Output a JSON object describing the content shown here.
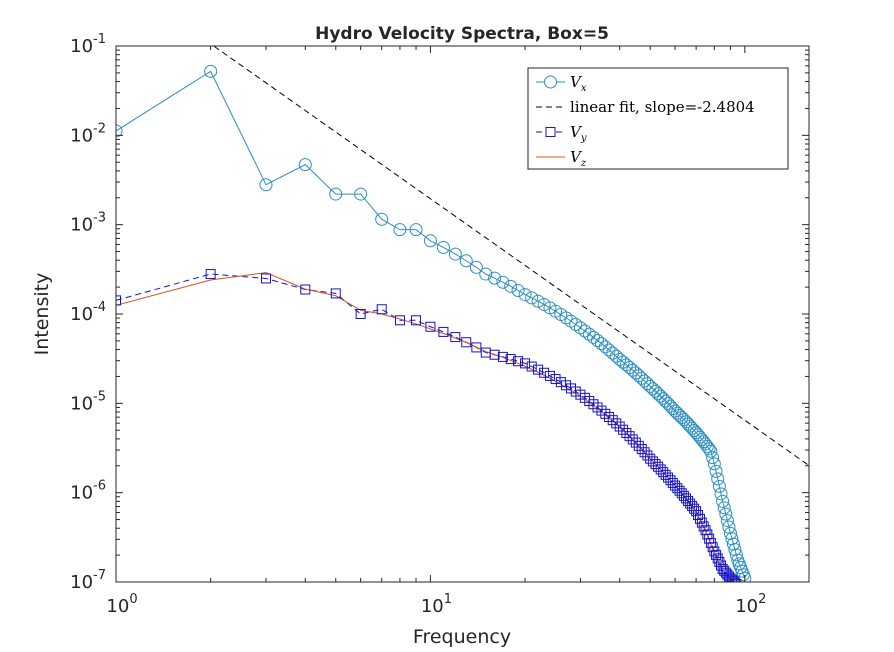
{
  "chart_data": {
    "type": "line",
    "title": "Hydro Velocity Spectra, Box=5",
    "xlabel": "Frequency",
    "ylabel": "Intensity",
    "xscale": "log",
    "yscale": "log",
    "xlim": [
      1,
      160
    ],
    "ylim": [
      1e-07,
      0.1
    ],
    "grid": false,
    "legend_position": "top-right",
    "xtick_labels": [
      {
        "value": 1,
        "base": "10",
        "exp": "0"
      },
      {
        "value": 10,
        "base": "10",
        "exp": "1"
      },
      {
        "value": 100,
        "base": "10",
        "exp": "2"
      }
    ],
    "ytick_labels": [
      {
        "value": 1e-07,
        "base": "10",
        "exp": "-7"
      },
      {
        "value": 1e-06,
        "base": "10",
        "exp": "-6"
      },
      {
        "value": 1e-05,
        "base": "10",
        "exp": "-5"
      },
      {
        "value": 0.0001,
        "base": "10",
        "exp": "-4"
      },
      {
        "value": 0.001,
        "base": "10",
        "exp": "-3"
      },
      {
        "value": 0.01,
        "base": "10",
        "exp": "-2"
      },
      {
        "value": 0.1,
        "base": "10",
        "exp": "-1"
      }
    ],
    "series": [
      {
        "name": "V_x",
        "legend_label": {
          "base": "V",
          "sub": "x"
        },
        "color": "#2a8fc2",
        "marker": "circle",
        "line": "solid",
        "anchors": [
          [
            1,
            0.0112
          ],
          [
            2,
            0.052
          ],
          [
            3,
            0.0028
          ],
          [
            4,
            0.0047
          ],
          [
            5,
            0.0022
          ],
          [
            6,
            0.0022
          ],
          [
            7,
            0.00115
          ],
          [
            8,
            0.00088
          ],
          [
            9,
            0.00088
          ],
          [
            10,
            0.00066
          ],
          [
            15,
            0.00028
          ],
          [
            20,
            0.000165
          ],
          [
            30,
            7e-05
          ],
          [
            40,
            3.1e-05
          ],
          [
            50,
            1.55e-05
          ],
          [
            60,
            8.2e-06
          ],
          [
            70,
            4.7e-06
          ],
          [
            75,
            3.5e-06
          ],
          [
            78,
            2.9e-06
          ],
          [
            80,
            2.1e-06
          ],
          [
            85,
            8e-07
          ],
          [
            90,
            3.5e-07
          ],
          [
            95,
            1.75e-07
          ],
          [
            100,
            1.1e-07
          ]
        ]
      },
      {
        "name": "linear fit, slope=-2.4804",
        "legend_label": {
          "text": "linear fit, slope=-2.4804"
        },
        "color": "#000000",
        "marker": "none",
        "line": "dashed",
        "slope": -2.4804,
        "intercept_at_1": 0.59
      },
      {
        "name": "V_y",
        "legend_label": {
          "base": "V",
          "sub": "y"
        },
        "color": "#1414c8",
        "marker": "square",
        "line": "dashed",
        "anchors": [
          [
            1,
            0.000142
          ],
          [
            2,
            0.00028
          ],
          [
            3,
            0.00025
          ],
          [
            4,
            0.000188
          ],
          [
            5,
            0.00017
          ],
          [
            6,
            0.0001
          ],
          [
            7,
            0.000113
          ],
          [
            8,
            8.5e-05
          ],
          [
            9,
            8.5e-05
          ],
          [
            10,
            7.2e-05
          ],
          [
            15,
            3.7e-05
          ],
          [
            20,
            2.8e-05
          ],
          [
            30,
            1.25e-05
          ],
          [
            40,
            5.5e-06
          ],
          [
            50,
            2.4e-06
          ],
          [
            60,
            1.2e-06
          ],
          [
            70,
            6.2e-07
          ],
          [
            75,
            3.8e-07
          ],
          [
            80,
            2.2e-07
          ],
          [
            85,
            1.4e-07
          ],
          [
            90,
            1.1e-07
          ],
          [
            94,
            9.5e-08
          ]
        ]
      },
      {
        "name": "V_z",
        "legend_label": {
          "base": "V",
          "sub": "z"
        },
        "color": "#d95319",
        "marker": "none",
        "line": "solid",
        "anchors": [
          [
            1,
            0.000125
          ],
          [
            2,
            0.00024
          ],
          [
            3,
            0.00029
          ],
          [
            4,
            0.00019
          ],
          [
            5,
            0.00016
          ],
          [
            6,
            0.00011
          ],
          [
            7,
            0.0001
          ],
          [
            8,
            8.8e-05
          ],
          [
            10,
            6.8e-05
          ],
          [
            15,
            3.8e-05
          ],
          [
            20,
            2.6e-05
          ],
          [
            30,
            1.2e-05
          ],
          [
            40,
            5.4e-06
          ],
          [
            50,
            2.4e-06
          ],
          [
            60,
            1.2e-06
          ],
          [
            70,
            6e-07
          ],
          [
            75,
            3.7e-07
          ],
          [
            80,
            2.1e-07
          ],
          [
            85,
            1.3e-07
          ],
          [
            90,
            1.05e-07
          ],
          [
            94,
            9.5e-08
          ]
        ]
      }
    ]
  }
}
